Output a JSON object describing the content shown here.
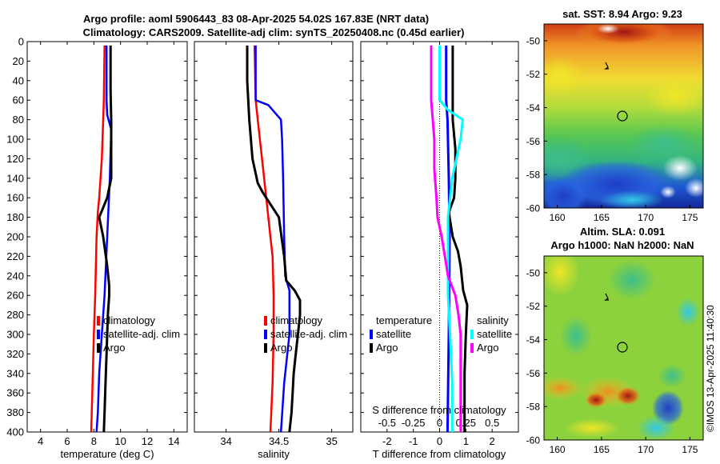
{
  "figure": {
    "title_line1": "Argo profile: aoml 5906443_83 08-Apr-2025 54.02S 167.83E (NRT data)",
    "title_line2": "Climatology: CARS2009. Satellite-adj clim: synTS_20250408.nc (0.45d earlier)",
    "watermark": "©IMOS 13-Apr-2025 11:40:30"
  },
  "colors": {
    "climatology": "#ff0000",
    "satellite_clim": "#0000ff",
    "argo": "#000000",
    "sat_temp_diff": "#0000ff",
    "sal_diff": "#ff00ff",
    "sat_sal_diff": "#00ffff"
  },
  "chart_data": [
    {
      "id": "temperature",
      "type": "line",
      "xlabel": "temperature (deg C)",
      "ylabel": "",
      "xlim": [
        3,
        15
      ],
      "ylim": [
        0,
        400
      ],
      "y_reversed": true,
      "xticks": [
        4,
        6,
        8,
        10,
        12,
        14
      ],
      "yticks": [
        0,
        20,
        40,
        60,
        80,
        100,
        120,
        140,
        160,
        180,
        200,
        220,
        240,
        260,
        280,
        300,
        320,
        340,
        360,
        380,
        400
      ],
      "legend": [
        "climatology",
        "satellite-adj. clim",
        "Argo"
      ],
      "series": [
        {
          "name": "climatology",
          "depth": [
            4,
            60,
            80,
            120,
            160,
            175,
            200,
            260,
            300,
            350,
            400
          ],
          "values": [
            8.8,
            8.75,
            8.7,
            8.6,
            8.4,
            8.3,
            8.2,
            8.1,
            8.0,
            7.9,
            7.8
          ]
        },
        {
          "name": "satellite-adj. clim",
          "depth": [
            4,
            60,
            75,
            90,
            140,
            200,
            260,
            300,
            340,
            380,
            400
          ],
          "values": [
            8.95,
            8.95,
            9.0,
            9.3,
            9.2,
            9.0,
            8.8,
            8.6,
            8.4,
            8.3,
            8.2
          ]
        },
        {
          "name": "Argo",
          "depth": [
            4,
            20,
            50,
            80,
            110,
            140,
            160,
            180,
            200,
            230,
            250,
            260,
            280,
            300,
            320,
            340,
            360,
            380,
            400
          ],
          "values": [
            9.25,
            9.25,
            9.25,
            9.3,
            9.3,
            9.3,
            9.0,
            8.4,
            8.7,
            9.0,
            9.15,
            9.15,
            9.05,
            9.0,
            8.95,
            8.9,
            8.85,
            8.8,
            8.75
          ]
        }
      ]
    },
    {
      "id": "salinity",
      "type": "line",
      "xlabel": "salinity",
      "ylabel": "",
      "xlim": [
        33.7,
        35.2
      ],
      "ylim": [
        0,
        400
      ],
      "y_reversed": true,
      "xticks": [
        34,
        34.5,
        35
      ],
      "legend": [
        "climatology",
        "satellite-adj. clim",
        "Argo"
      ],
      "series": [
        {
          "name": "climatology",
          "depth": [
            4,
            60,
            80,
            120,
            160,
            180,
            200,
            220,
            260,
            300,
            350,
            400
          ],
          "values": [
            34.27,
            34.28,
            34.3,
            34.34,
            34.38,
            34.4,
            34.42,
            34.44,
            34.45,
            34.45,
            34.44,
            34.42
          ]
        },
        {
          "name": "satellite-adj. clim",
          "depth": [
            4,
            60,
            65,
            80,
            100,
            140,
            200,
            240,
            255,
            300,
            350,
            400
          ],
          "values": [
            34.28,
            34.28,
            34.4,
            34.52,
            34.53,
            34.54,
            34.55,
            34.56,
            34.6,
            34.6,
            34.55,
            34.52
          ]
        },
        {
          "name": "Argo",
          "depth": [
            4,
            40,
            80,
            120,
            145,
            155,
            180,
            220,
            245,
            255,
            265,
            280,
            300,
            320,
            340,
            360,
            380,
            400
          ],
          "values": [
            34.2,
            34.2,
            34.22,
            34.25,
            34.3,
            34.35,
            34.5,
            34.55,
            34.57,
            34.65,
            34.7,
            34.7,
            34.68,
            34.66,
            34.64,
            34.63,
            34.62,
            34.6
          ]
        }
      ]
    },
    {
      "id": "difference",
      "type": "line",
      "xlabel": "T difference from climatology",
      "top_label": "S difference from climatology",
      "xlim": [
        -3,
        3
      ],
      "ylim": [
        0,
        400
      ],
      "y_reversed": true,
      "xticks": [
        -2,
        -1,
        0,
        1,
        2
      ],
      "xtick_labels": [
        "-2",
        "-1",
        "0",
        "1",
        "2"
      ],
      "top_ticks": [
        -0.5,
        -0.25,
        0,
        0.25,
        0.5
      ],
      "top_tick_labels": [
        "-0.5",
        "-0.25",
        "0",
        "0.25",
        "0.5"
      ],
      "legend_groups": [
        {
          "heading": "temperature",
          "entries": [
            "satellite",
            "Argo"
          ]
        },
        {
          "heading": "salinity",
          "entries": [
            "satellite",
            "Argo"
          ]
        }
      ],
      "series": [
        {
          "name": "temperature satellite",
          "depth": [
            4,
            60,
            80,
            140,
            200,
            300,
            400
          ],
          "values": [
            0.25,
            0.25,
            0.3,
            0.35,
            0.38,
            0.35,
            0.3
          ]
        },
        {
          "name": "temperature Argo",
          "depth": [
            4,
            40,
            80,
            110,
            140,
            160,
            175,
            200,
            215,
            230,
            255,
            270,
            300,
            340,
            380,
            400
          ],
          "values": [
            0.5,
            0.5,
            0.5,
            0.6,
            0.6,
            0.55,
            0.35,
            0.5,
            0.7,
            0.8,
            0.9,
            1.05,
            1.0,
            0.95,
            0.95,
            0.95
          ]
        },
        {
          "name": "salinity satellite",
          "depth": [
            4,
            40,
            60,
            70,
            80,
            100,
            140,
            180,
            260,
            300,
            350,
            400
          ],
          "values": [
            0.0,
            0.0,
            0.0,
            0.08,
            0.22,
            0.2,
            0.12,
            0.08,
            0.08,
            0.1,
            0.12,
            0.12
          ]
        },
        {
          "name": "salinity Argo",
          "depth": [
            4,
            40,
            60,
            100,
            130,
            145,
            160,
            180,
            200,
            220,
            240,
            260,
            280,
            300,
            340,
            400
          ],
          "values": [
            -0.08,
            -0.08,
            -0.08,
            -0.05,
            -0.05,
            -0.04,
            -0.03,
            -0.02,
            0.02,
            0.05,
            0.08,
            0.15,
            0.18,
            0.2,
            0.2,
            0.2
          ]
        }
      ]
    }
  ],
  "maps": {
    "sst": {
      "title": "sat. SST: 8.94 Argo: 9.23",
      "xticks": [
        "160",
        "165",
        "170",
        "175"
      ],
      "yticks": [
        "-50",
        "-52",
        "-54",
        "-56",
        "-58",
        "-60"
      ]
    },
    "sla": {
      "title_line1": "Altim. SLA: 0.091",
      "title_line2": "Argo h1000: NaN h2000: NaN",
      "xticks": [
        "160",
        "165",
        "170",
        "175"
      ],
      "yticks": [
        "-50",
        "-52",
        "-54",
        "-56",
        "-58",
        "-60"
      ]
    }
  }
}
